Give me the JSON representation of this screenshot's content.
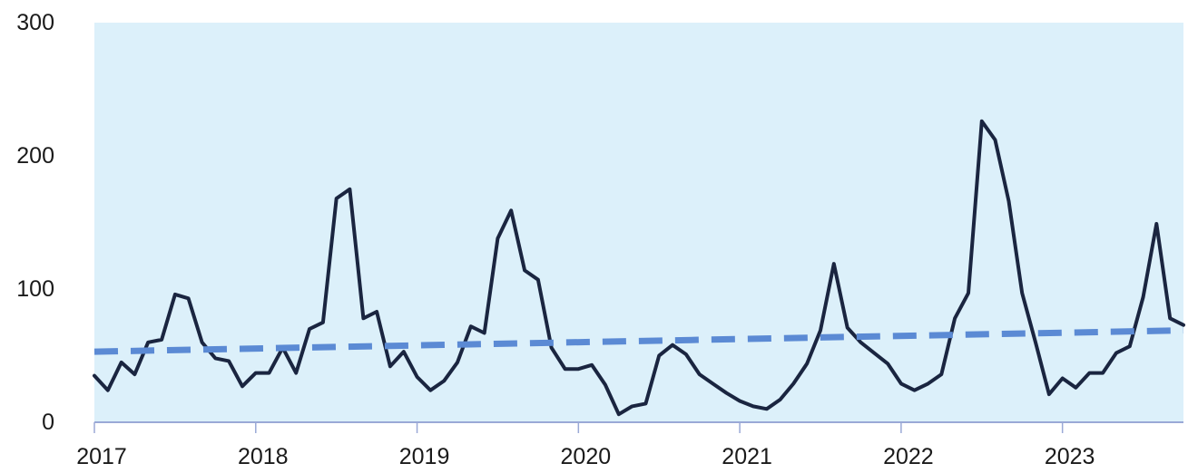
{
  "chart_data": {
    "type": "line",
    "title": "",
    "xlabel": "",
    "ylabel": "",
    "xlim": [
      2017.0,
      2023.75
    ],
    "ylim": [
      0,
      300
    ],
    "grid": false,
    "y_ticks": [
      {
        "value": 0,
        "label": "0"
      },
      {
        "value": 100,
        "label": "100"
      },
      {
        "value": 200,
        "label": "200"
      },
      {
        "value": 300,
        "label": "300"
      }
    ],
    "x_ticks": [
      {
        "value": 2017,
        "label": "2017"
      },
      {
        "value": 2018,
        "label": "2018"
      },
      {
        "value": 2019,
        "label": "2019"
      },
      {
        "value": 2020,
        "label": "2020"
      },
      {
        "value": 2021,
        "label": "2021"
      },
      {
        "value": 2022,
        "label": "2022"
      },
      {
        "value": 2023,
        "label": "2023"
      }
    ],
    "colors": {
      "plot_background": "#dcf0fa",
      "series_line": "#1a2540",
      "trend_line": "#5b8ad4",
      "axis": "#9aa9d6"
    },
    "series": [
      {
        "style": "solid",
        "points": [
          [
            2017.0,
            35
          ],
          [
            2017.083,
            24
          ],
          [
            2017.167,
            45
          ],
          [
            2017.25,
            36
          ],
          [
            2017.333,
            60
          ],
          [
            2017.417,
            62
          ],
          [
            2017.5,
            96
          ],
          [
            2017.583,
            93
          ],
          [
            2017.667,
            60
          ],
          [
            2017.75,
            48
          ],
          [
            2017.833,
            46
          ],
          [
            2017.917,
            27
          ],
          [
            2018.0,
            37
          ],
          [
            2018.083,
            37
          ],
          [
            2018.167,
            56
          ],
          [
            2018.25,
            37
          ],
          [
            2018.333,
            70
          ],
          [
            2018.417,
            75
          ],
          [
            2018.5,
            168
          ],
          [
            2018.583,
            175
          ],
          [
            2018.667,
            78
          ],
          [
            2018.75,
            83
          ],
          [
            2018.833,
            42
          ],
          [
            2018.917,
            53
          ],
          [
            2019.0,
            34
          ],
          [
            2019.083,
            24
          ],
          [
            2019.167,
            31
          ],
          [
            2019.25,
            45
          ],
          [
            2019.333,
            72
          ],
          [
            2019.417,
            67
          ],
          [
            2019.5,
            138
          ],
          [
            2019.583,
            159
          ],
          [
            2019.667,
            114
          ],
          [
            2019.75,
            107
          ],
          [
            2019.833,
            56
          ],
          [
            2019.917,
            40
          ],
          [
            2020.0,
            40
          ],
          [
            2020.083,
            43
          ],
          [
            2020.167,
            28
          ],
          [
            2020.25,
            6
          ],
          [
            2020.333,
            12
          ],
          [
            2020.417,
            14
          ],
          [
            2020.5,
            50
          ],
          [
            2020.583,
            58
          ],
          [
            2020.667,
            51
          ],
          [
            2020.75,
            36
          ],
          [
            2020.833,
            29
          ],
          [
            2020.917,
            22
          ],
          [
            2021.0,
            16
          ],
          [
            2021.083,
            12
          ],
          [
            2021.167,
            10
          ],
          [
            2021.25,
            17
          ],
          [
            2021.333,
            29
          ],
          [
            2021.417,
            44
          ],
          [
            2021.5,
            69
          ],
          [
            2021.583,
            119
          ],
          [
            2021.667,
            71
          ],
          [
            2021.75,
            60
          ],
          [
            2021.833,
            52
          ],
          [
            2021.917,
            44
          ],
          [
            2022.0,
            29
          ],
          [
            2022.083,
            24
          ],
          [
            2022.167,
            29
          ],
          [
            2022.25,
            36
          ],
          [
            2022.333,
            78
          ],
          [
            2022.417,
            97
          ],
          [
            2022.5,
            226
          ],
          [
            2022.583,
            212
          ],
          [
            2022.667,
            166
          ],
          [
            2022.75,
            97
          ],
          [
            2022.833,
            60
          ],
          [
            2022.917,
            21
          ],
          [
            2023.0,
            33
          ],
          [
            2023.083,
            26
          ],
          [
            2023.167,
            37
          ],
          [
            2023.25,
            37
          ],
          [
            2023.333,
            52
          ],
          [
            2023.417,
            57
          ],
          [
            2023.5,
            94
          ],
          [
            2023.583,
            149
          ],
          [
            2023.667,
            78
          ],
          [
            2023.75,
            73
          ]
        ]
      },
      {
        "style": "dashed",
        "points": [
          [
            2017.0,
            53
          ],
          [
            2023.75,
            69
          ]
        ]
      }
    ]
  }
}
